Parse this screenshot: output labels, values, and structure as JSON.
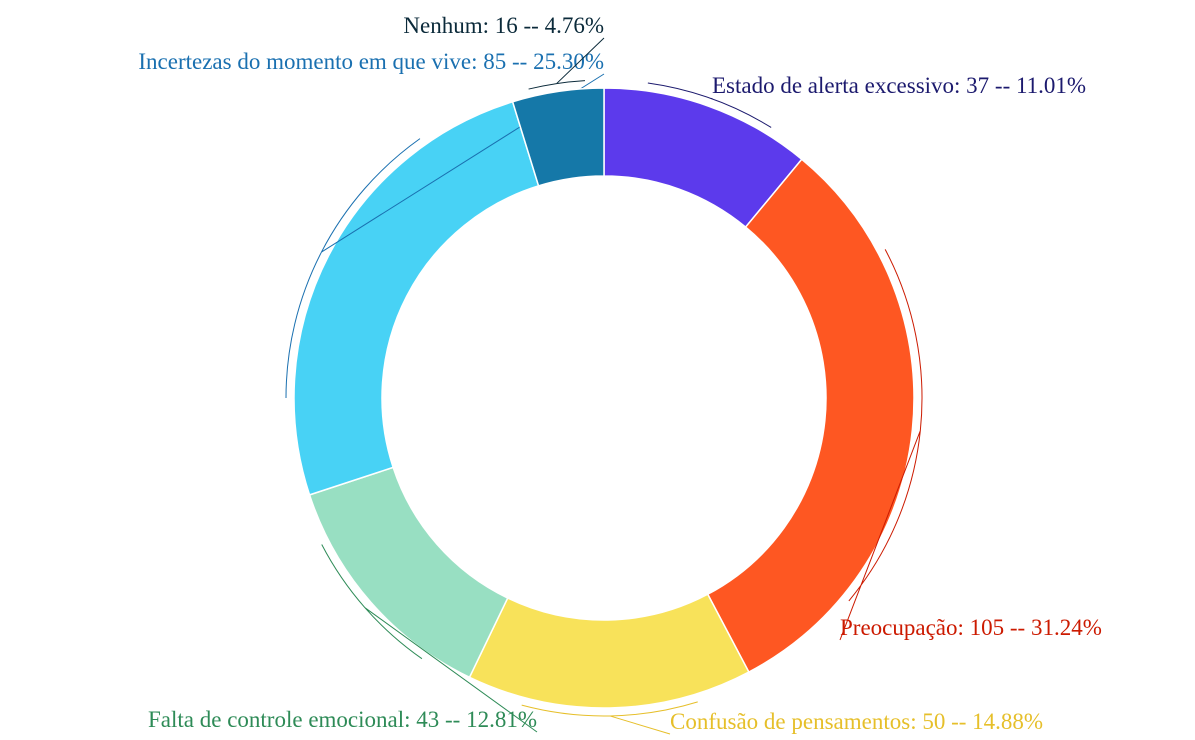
{
  "chart_data": {
    "type": "donut",
    "categories": [
      "Estado de alerta excessivo",
      "Preocupação",
      "Confusão de pensamentos",
      "Falta de controle emocional",
      "Incertezas do momento em que vive",
      "Nenhum"
    ],
    "values": [
      37,
      105,
      50,
      43,
      85,
      16
    ],
    "value_labels": [
      ": 37 -- 11.01%",
      ": 105 -- 31.24%",
      ": 50 -- 14.88%",
      ": 43 -- 12.81%",
      ": 85 -- 25.30%",
      ": 16 -- 4.76%"
    ],
    "colors": [
      "#5c3aec",
      "#fe5722",
      "#f8e25a",
      "#98dfc2",
      "#48d2f5",
      "#1578a8"
    ],
    "label_colors": [
      "#1c1a6e",
      "#cc1a00",
      "#e6bf2a",
      "#2e8b57",
      "#1a70b0",
      "#0b2a3a"
    ]
  }
}
